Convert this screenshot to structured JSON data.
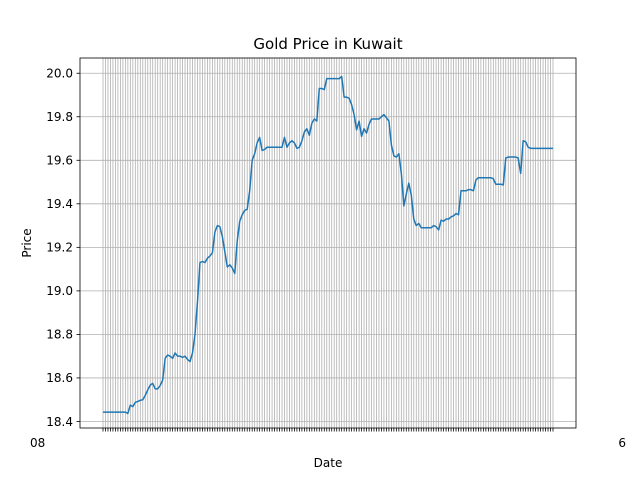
{
  "chart_data": {
    "type": "line",
    "title": "Gold Price in Kuwait",
    "xlabel": "Date",
    "ylabel": "Price",
    "ylim": [
      18.37,
      20.07
    ],
    "yticks": [
      18.4,
      18.6,
      18.8,
      19.0,
      19.2,
      19.4,
      19.6,
      19.8,
      20.0
    ],
    "ytick_labels": [
      "18.4",
      "18.6",
      "18.8",
      "19.0",
      "19.2",
      "19.4",
      "19.6",
      "19.8",
      "20.0"
    ],
    "grid": true,
    "xtick_labels_note": "illegible overlapping date labels",
    "xtick_first_label": "08",
    "xtick_last_label": "6",
    "series": [
      {
        "color": "#1f77b4",
        "values": [
          18.443,
          18.443,
          18.443,
          18.443,
          18.443,
          18.443,
          18.443,
          18.443,
          18.443,
          18.443,
          18.437,
          18.475,
          18.468,
          18.488,
          18.492,
          18.497,
          18.5,
          18.52,
          18.545,
          18.567,
          18.575,
          18.55,
          18.55,
          18.565,
          18.59,
          18.69,
          18.705,
          18.7,
          18.69,
          18.715,
          18.7,
          18.7,
          18.695,
          18.7,
          18.685,
          18.675,
          18.715,
          18.8,
          18.95,
          19.13,
          19.135,
          19.13,
          19.15,
          19.16,
          19.175,
          19.27,
          19.3,
          19.295,
          19.25,
          19.18,
          19.11,
          19.12,
          19.105,
          19.08,
          19.23,
          19.32,
          19.35,
          19.37,
          19.375,
          19.46,
          19.6,
          19.63,
          19.68,
          19.705,
          19.645,
          19.65,
          19.66,
          19.66,
          19.66,
          19.66,
          19.66,
          19.66,
          19.66,
          19.705,
          19.66,
          19.68,
          19.69,
          19.68,
          19.655,
          19.66,
          19.69,
          19.73,
          19.745,
          19.715,
          19.77,
          19.79,
          19.78,
          19.93,
          19.93,
          19.925,
          19.975,
          19.975,
          19.975,
          19.975,
          19.975,
          19.975,
          19.985,
          19.89,
          19.89,
          19.885,
          19.855,
          19.81,
          19.74,
          19.78,
          19.71,
          19.745,
          19.725,
          19.765,
          19.79,
          19.79,
          19.79,
          19.79,
          19.8,
          19.81,
          19.795,
          19.78,
          19.67,
          19.62,
          19.615,
          19.63,
          19.54,
          19.39,
          19.445,
          19.495,
          19.44,
          19.33,
          19.3,
          19.31,
          19.29,
          19.29,
          19.29,
          19.29,
          19.29,
          19.3,
          19.295,
          19.28,
          19.325,
          19.32,
          19.33,
          19.33,
          19.34,
          19.345,
          19.355,
          19.35,
          19.46,
          19.46,
          19.46,
          19.465,
          19.465,
          19.46,
          19.51,
          19.52,
          19.52,
          19.52,
          19.52,
          19.52,
          19.52,
          19.515,
          19.49,
          19.49,
          19.49,
          19.487,
          19.61,
          19.615,
          19.615,
          19.615,
          19.615,
          19.61,
          19.54,
          19.69,
          19.685,
          19.66,
          19.655,
          19.655,
          19.655,
          19.655,
          19.655,
          19.655,
          19.655,
          19.655,
          19.655,
          19.655
        ]
      }
    ]
  }
}
